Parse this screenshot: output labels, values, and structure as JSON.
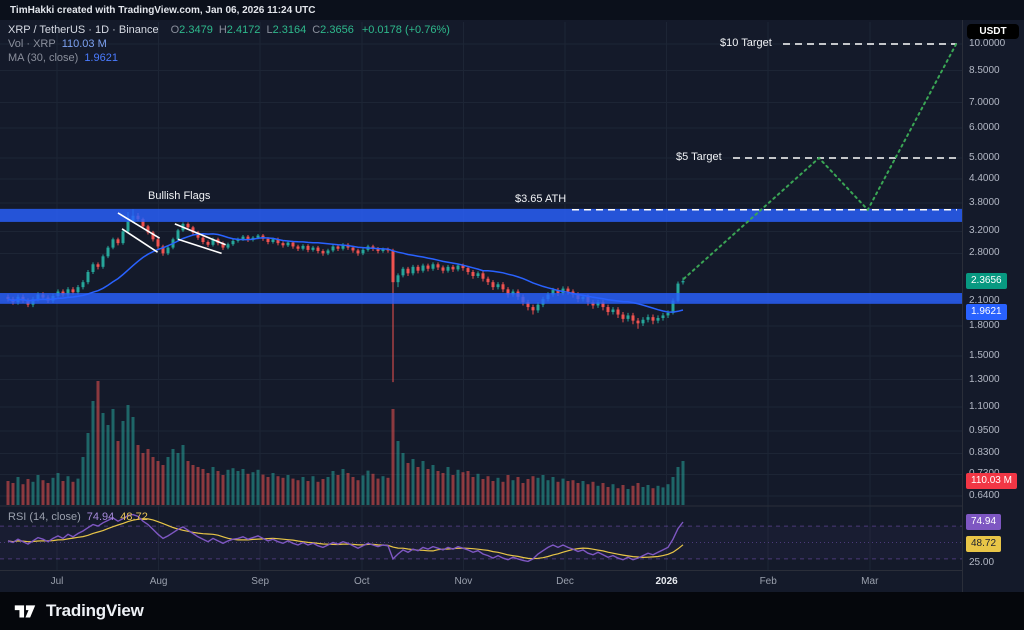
{
  "attribution": "TimHakki created with TradingView.com, Jan 06, 2026 11:24 UTC",
  "currency_unit": "USDT",
  "footer": {
    "brand": "TradingView"
  },
  "legend": {
    "symbol_line": "XRP / TetherUS · 1D · Binance",
    "ohlc": [
      {
        "k": "O",
        "v": "2.3479"
      },
      {
        "k": "H",
        "v": "2.4172"
      },
      {
        "k": "L",
        "v": "2.3164"
      },
      {
        "k": "C",
        "v": "2.3656"
      }
    ],
    "change": "+0.0178 (+0.76%)",
    "vol_label": "Vol · XRP",
    "vol_value": "110.03 M",
    "ma_label": "MA (30, close)",
    "ma_value": "1.9621"
  },
  "rsi_legend": {
    "label": "RSI (14, close)",
    "value1": "74.94",
    "value2": "48.72"
  },
  "badges": {
    "price": {
      "text": "2.3656",
      "bg": "#089981"
    },
    "ma": {
      "text": "1.9621",
      "bg": "#2962ff"
    },
    "volume": {
      "text": "110.03 M",
      "bg": "#f23645"
    },
    "rsi": {
      "text": "74.94",
      "bg": "#7e57c2"
    },
    "rsi_ma": {
      "text": "48.72",
      "bg": "#e8c547",
      "fg": "#1c2030"
    }
  },
  "chart_data": {
    "type": "candlestick",
    "pair": "XRP / TetherUS",
    "interval": "1D",
    "exchange": "Binance",
    "scale": "log",
    "colors": {
      "up": "#26a69a",
      "down": "#ef5350",
      "ma": "#2962ff",
      "zone": "#2962ff",
      "projection": "#3aa655",
      "rsi": "#7e57c2",
      "rsi_ma": "#e8c547"
    },
    "x_axis": {
      "labels": [
        {
          "text": "Jul"
        },
        {
          "text": "Aug"
        },
        {
          "text": "Sep"
        },
        {
          "text": "Oct"
        },
        {
          "text": "Nov"
        },
        {
          "text": "Dec"
        },
        {
          "text": "2026",
          "strong": true
        },
        {
          "text": "Feb"
        },
        {
          "text": "Mar"
        }
      ]
    },
    "y_axis": {
      "ticks": [
        "10.0000",
        "8.5000",
        "7.0000",
        "6.0000",
        "5.0000",
        "4.4000",
        "3.8000",
        "3.2000",
        "2.8000",
        "2.1000",
        "1.8000",
        "1.5000",
        "1.3000",
        "1.1000",
        "0.9500",
        "0.8300",
        "0.7300",
        "0.6400"
      ]
    },
    "zones": [
      {
        "top": 3.67,
        "bottom": 3.39
      },
      {
        "top": 2.2,
        "bottom": 2.06
      }
    ],
    "ath_line": {
      "price": 3.65,
      "label": "$3.65 ATH"
    },
    "targets": [
      {
        "price": 10.0,
        "label": "$10 Target"
      },
      {
        "price": 5.0,
        "label": "$5 Target"
      }
    ],
    "flags_label": "Bullish Flags",
    "flags": [
      {
        "m1": 0.6,
        "p1": 3.58,
        "m2": 1.01,
        "p2": 3.07
      },
      {
        "m1": 0.64,
        "p1": 3.25,
        "m2": 0.99,
        "p2": 2.82
      },
      {
        "m1": 1.16,
        "p1": 3.35,
        "m2": 1.66,
        "p2": 2.95
      },
      {
        "m1": 1.19,
        "p1": 3.05,
        "m2": 1.62,
        "p2": 2.8
      }
    ],
    "projection": [
      {
        "m": 6.17,
        "p": 2.4
      },
      {
        "m": 7.5,
        "p": 5.0
      },
      {
        "m": 7.98,
        "p": 3.65
      },
      {
        "m": 8.85,
        "p": 10.0
      }
    ],
    "candles": [
      [
        2.15,
        2.18,
        2.09,
        2.12
      ],
      [
        2.12,
        2.15,
        2.05,
        2.08
      ],
      [
        2.08,
        2.18,
        2.05,
        2.15
      ],
      [
        2.15,
        2.18,
        2.07,
        2.1
      ],
      [
        2.1,
        2.13,
        2.02,
        2.05
      ],
      [
        2.05,
        2.15,
        2.02,
        2.12
      ],
      [
        2.12,
        2.21,
        2.09,
        2.18
      ],
      [
        2.18,
        2.21,
        2.11,
        2.14
      ],
      [
        2.14,
        2.17,
        2.07,
        2.1
      ],
      [
        2.1,
        2.19,
        2.07,
        2.16
      ],
      [
        2.16,
        2.25,
        2.13,
        2.22
      ],
      [
        2.22,
        2.25,
        2.15,
        2.18
      ],
      [
        2.18,
        2.28,
        2.15,
        2.25
      ],
      [
        2.25,
        2.28,
        2.18,
        2.21
      ],
      [
        2.21,
        2.31,
        2.18,
        2.28
      ],
      [
        2.28,
        2.38,
        2.25,
        2.35
      ],
      [
        2.35,
        2.53,
        2.32,
        2.5
      ],
      [
        2.5,
        2.65,
        2.47,
        2.62
      ],
      [
        2.62,
        2.65,
        2.54,
        2.58
      ],
      [
        2.58,
        2.78,
        2.55,
        2.75
      ],
      [
        2.75,
        2.93,
        2.72,
        2.9
      ],
      [
        2.9,
        3.08,
        2.87,
        3.05
      ],
      [
        3.05,
        3.08,
        2.94,
        2.98
      ],
      [
        2.98,
        3.23,
        2.95,
        3.2
      ],
      [
        3.2,
        3.6,
        3.17,
        3.4
      ],
      [
        3.4,
        3.66,
        3.37,
        3.52
      ],
      [
        3.52,
        3.58,
        3.41,
        3.45
      ],
      [
        3.45,
        3.48,
        3.26,
        3.3
      ],
      [
        3.3,
        3.33,
        3.14,
        3.18
      ],
      [
        3.18,
        3.21,
        3.01,
        3.05
      ],
      [
        3.05,
        3.08,
        2.88,
        2.92
      ],
      [
        2.92,
        2.95,
        2.76,
        2.8
      ],
      [
        2.8,
        2.93,
        2.77,
        2.9
      ],
      [
        2.9,
        3.08,
        2.87,
        3.05
      ],
      [
        3.05,
        3.25,
        3.02,
        3.22
      ],
      [
        3.22,
        3.38,
        3.19,
        3.35
      ],
      [
        3.35,
        3.38,
        3.24,
        3.28
      ],
      [
        3.28,
        3.31,
        3.14,
        3.18
      ],
      [
        3.18,
        3.21,
        3.04,
        3.08
      ],
      [
        3.08,
        3.11,
        2.96,
        3.0
      ],
      [
        3.0,
        3.03,
        2.91,
        2.95
      ],
      [
        2.95,
        3.08,
        2.92,
        3.05
      ],
      [
        3.05,
        3.08,
        2.94,
        2.98
      ],
      [
        2.98,
        3.01,
        2.86,
        2.9
      ],
      [
        2.9,
        2.99,
        2.87,
        2.96
      ],
      [
        2.96,
        3.05,
        2.93,
        3.02
      ],
      [
        3.02,
        3.08,
        2.99,
        3.05
      ],
      [
        3.05,
        3.13,
        3.02,
        3.1
      ],
      [
        3.1,
        3.13,
        3.0,
        3.04
      ],
      [
        3.04,
        3.11,
        3.01,
        3.08
      ],
      [
        3.08,
        3.15,
        3.05,
        3.12
      ],
      [
        3.12,
        3.15,
        3.02,
        3.06
      ],
      [
        3.06,
        3.09,
        2.96,
        3.0
      ],
      [
        3.0,
        3.08,
        2.97,
        3.05
      ],
      [
        3.05,
        3.08,
        2.94,
        2.98
      ],
      [
        2.98,
        3.01,
        2.9,
        2.94
      ],
      [
        2.94,
        3.02,
        2.91,
        2.99
      ],
      [
        2.99,
        3.02,
        2.88,
        2.92
      ],
      [
        2.92,
        2.95,
        2.84,
        2.88
      ],
      [
        2.88,
        2.96,
        2.85,
        2.93
      ],
      [
        2.93,
        2.96,
        2.82,
        2.86
      ],
      [
        2.86,
        2.93,
        2.83,
        2.9
      ],
      [
        2.9,
        2.93,
        2.8,
        2.84
      ],
      [
        2.84,
        2.87,
        2.76,
        2.8
      ],
      [
        2.8,
        2.88,
        2.77,
        2.85
      ],
      [
        2.85,
        2.95,
        2.82,
        2.92
      ],
      [
        2.92,
        2.95,
        2.84,
        2.88
      ],
      [
        2.88,
        2.98,
        2.85,
        2.95
      ],
      [
        2.95,
        2.98,
        2.86,
        2.9
      ],
      [
        2.9,
        2.93,
        2.81,
        2.85
      ],
      [
        2.85,
        2.88,
        2.76,
        2.8
      ],
      [
        2.8,
        2.89,
        2.77,
        2.86
      ],
      [
        2.86,
        2.95,
        2.83,
        2.92
      ],
      [
        2.92,
        2.95,
        2.84,
        2.88
      ],
      [
        2.88,
        2.91,
        2.8,
        2.84
      ],
      [
        2.84,
        2.9,
        2.81,
        2.87
      ],
      [
        2.87,
        2.9,
        2.81,
        2.85
      ],
      [
        2.85,
        2.88,
        1.28,
        2.35
      ],
      [
        2.35,
        2.48,
        2.28,
        2.45
      ],
      [
        2.45,
        2.58,
        2.42,
        2.55
      ],
      [
        2.55,
        2.58,
        2.44,
        2.48
      ],
      [
        2.48,
        2.61,
        2.45,
        2.58
      ],
      [
        2.58,
        2.61,
        2.48,
        2.52
      ],
      [
        2.52,
        2.63,
        2.49,
        2.6
      ],
      [
        2.6,
        2.63,
        2.51,
        2.55
      ],
      [
        2.55,
        2.65,
        2.52,
        2.62
      ],
      [
        2.62,
        2.65,
        2.53,
        2.57
      ],
      [
        2.57,
        2.6,
        2.48,
        2.52
      ],
      [
        2.52,
        2.61,
        2.49,
        2.58
      ],
      [
        2.58,
        2.61,
        2.5,
        2.54
      ],
      [
        2.54,
        2.63,
        2.51,
        2.6
      ],
      [
        2.6,
        2.63,
        2.52,
        2.56
      ],
      [
        2.56,
        2.59,
        2.46,
        2.5
      ],
      [
        2.5,
        2.53,
        2.4,
        2.44
      ],
      [
        2.44,
        2.51,
        2.41,
        2.48
      ],
      [
        2.48,
        2.51,
        2.36,
        2.4
      ],
      [
        2.4,
        2.43,
        2.31,
        2.35
      ],
      [
        2.35,
        2.38,
        2.24,
        2.28
      ],
      [
        2.28,
        2.35,
        2.25,
        2.32
      ],
      [
        2.32,
        2.35,
        2.21,
        2.25
      ],
      [
        2.25,
        2.28,
        2.14,
        2.18
      ],
      [
        2.18,
        2.25,
        2.15,
        2.22
      ],
      [
        2.22,
        2.25,
        2.11,
        2.15
      ],
      [
        2.15,
        2.18,
        2.04,
        2.08
      ],
      [
        2.08,
        2.11,
        1.98,
        2.02
      ],
      [
        2.02,
        2.05,
        1.93,
        1.98
      ],
      [
        1.98,
        2.08,
        1.95,
        2.05
      ],
      [
        2.05,
        2.15,
        2.02,
        2.12
      ],
      [
        2.12,
        2.21,
        2.09,
        2.18
      ],
      [
        2.18,
        2.27,
        2.15,
        2.24
      ],
      [
        2.24,
        2.27,
        2.16,
        2.2
      ],
      [
        2.2,
        2.29,
        2.17,
        2.26
      ],
      [
        2.26,
        2.29,
        2.18,
        2.22
      ],
      [
        2.22,
        2.25,
        2.14,
        2.18
      ],
      [
        2.18,
        2.21,
        2.08,
        2.12
      ],
      [
        2.12,
        2.18,
        2.09,
        2.15
      ],
      [
        2.15,
        2.18,
        2.04,
        2.08
      ],
      [
        2.08,
        2.11,
        2.0,
        2.04
      ],
      [
        2.04,
        2.11,
        2.01,
        2.08
      ],
      [
        2.08,
        2.11,
        1.98,
        2.02
      ],
      [
        2.02,
        2.05,
        1.92,
        1.96
      ],
      [
        1.96,
        2.02,
        1.93,
        1.99
      ],
      [
        1.99,
        2.02,
        1.89,
        1.93
      ],
      [
        1.93,
        1.96,
        1.84,
        1.88
      ],
      [
        1.88,
        1.95,
        1.85,
        1.92
      ],
      [
        1.92,
        1.95,
        1.82,
        1.86
      ],
      [
        1.86,
        1.89,
        1.77,
        1.83
      ],
      [
        1.83,
        1.9,
        1.8,
        1.87
      ],
      [
        1.87,
        1.93,
        1.84,
        1.9
      ],
      [
        1.9,
        1.93,
        1.82,
        1.86
      ],
      [
        1.86,
        1.92,
        1.83,
        1.89
      ],
      [
        1.89,
        1.95,
        1.86,
        1.92
      ],
      [
        1.92,
        1.98,
        1.89,
        1.95
      ],
      [
        1.95,
        2.13,
        1.93,
        2.1
      ],
      [
        2.1,
        2.36,
        2.08,
        2.33
      ],
      [
        2.3479,
        2.4172,
        2.3164,
        2.3656
      ]
    ],
    "volumes": [
      60,
      55,
      70,
      52,
      65,
      58,
      75,
      62,
      55,
      68,
      80,
      60,
      72,
      58,
      66,
      120,
      180,
      260,
      310,
      230,
      200,
      240,
      160,
      210,
      250,
      220,
      150,
      130,
      140,
      120,
      110,
      100,
      120,
      140,
      130,
      150,
      110,
      100,
      95,
      90,
      80,
      95,
      85,
      75,
      88,
      92,
      85,
      90,
      78,
      82,
      88,
      76,
      70,
      80,
      72,
      68,
      75,
      66,
      62,
      70,
      60,
      72,
      58,
      65,
      70,
      85,
      75,
      90,
      80,
      70,
      62,
      74,
      86,
      78,
      66,
      72,
      68,
      240,
      160,
      130,
      105,
      115,
      95,
      110,
      90,
      100,
      85,
      80,
      95,
      75,
      88,
      82,
      85,
      70,
      78,
      65,
      72,
      60,
      68,
      58,
      75,
      62,
      70,
      55,
      65,
      72,
      68,
      75,
      62,
      70,
      58,
      66,
      60,
      62,
      55,
      60,
      52,
      58,
      48,
      55,
      45,
      52,
      42,
      50,
      40,
      48,
      55,
      45,
      50,
      42,
      48,
      44,
      52,
      70,
      95,
      110.03
    ],
    "rsi": {
      "upper_band": 70,
      "lower_band": 30,
      "mid": 50,
      "scale_label": "25.00",
      "values": [
        52,
        50,
        54,
        51,
        48,
        52,
        56,
        54,
        51,
        55,
        58,
        55,
        60,
        57,
        61,
        64,
        68,
        72,
        70,
        74,
        77,
        80,
        76,
        79,
        83,
        84,
        82,
        76,
        72,
        66,
        60,
        55,
        58,
        62,
        66,
        69,
        65,
        61,
        57,
        54,
        51,
        55,
        52,
        49,
        52,
        54,
        55,
        57,
        54,
        56,
        58,
        55,
        52,
        54,
        51,
        49,
        52,
        49,
        47,
        50,
        47,
        49,
        46,
        44,
        47,
        50,
        48,
        51,
        49,
        46,
        43,
        46,
        49,
        47,
        45,
        47,
        46,
        30,
        36,
        41,
        38,
        42,
        40,
        44,
        42,
        45,
        43,
        41,
        44,
        42,
        45,
        43,
        41,
        38,
        40,
        36,
        34,
        31,
        34,
        31,
        29,
        32,
        30,
        28,
        27,
        30,
        36,
        40,
        44,
        47,
        44,
        47,
        44,
        42,
        39,
        41,
        37,
        35,
        38,
        35,
        32,
        34,
        31,
        29,
        32,
        29,
        31,
        34,
        37,
        35,
        38,
        41,
        44,
        54,
        67,
        74.94
      ]
    }
  }
}
